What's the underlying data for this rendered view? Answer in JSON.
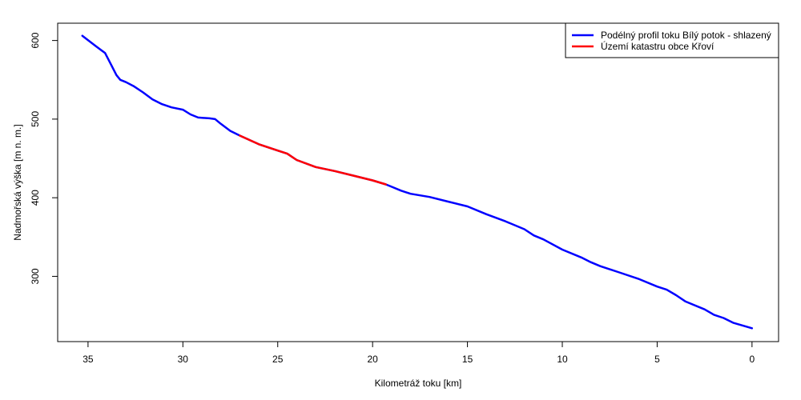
{
  "chart_data": {
    "type": "line",
    "xlabel": "Kilometráž toku [km]",
    "ylabel": "Nadmořská výška [m n. m.]",
    "x_reversed": true,
    "xlim": [
      36.6,
      -1.4
    ],
    "ylim": [
      217,
      622
    ],
    "x_ticks": [
      35,
      30,
      25,
      20,
      15,
      10,
      5,
      0
    ],
    "y_ticks": [
      300,
      400,
      500,
      600
    ],
    "legend_position": "top-right",
    "grid": false,
    "series": [
      {
        "name": "Podélný profil toku Bílý potok - shlazený",
        "color": "#0000ff",
        "points": [
          [
            35.3,
            606
          ],
          [
            34.6,
            593
          ],
          [
            34.1,
            584
          ],
          [
            33.8,
            570
          ],
          [
            33.5,
            556
          ],
          [
            33.3,
            550
          ],
          [
            33.0,
            547
          ],
          [
            32.6,
            542
          ],
          [
            32.1,
            534
          ],
          [
            31.6,
            525
          ],
          [
            31.1,
            519
          ],
          [
            30.6,
            515
          ],
          [
            30.0,
            512
          ],
          [
            29.6,
            506
          ],
          [
            29.2,
            502
          ],
          [
            28.6,
            501
          ],
          [
            28.3,
            500
          ],
          [
            28.0,
            494
          ],
          [
            27.5,
            485
          ],
          [
            27.0,
            479
          ],
          [
            26.0,
            468
          ],
          [
            25.0,
            460
          ],
          [
            24.5,
            456
          ],
          [
            24.0,
            448
          ],
          [
            23.0,
            439
          ],
          [
            22.0,
            434
          ],
          [
            21.0,
            428
          ],
          [
            20.0,
            422
          ],
          [
            19.3,
            417
          ],
          [
            19.0,
            414
          ],
          [
            18.5,
            409
          ],
          [
            18.0,
            405
          ],
          [
            17.0,
            401
          ],
          [
            16.0,
            395
          ],
          [
            15.0,
            389
          ],
          [
            14.0,
            379
          ],
          [
            13.0,
            370
          ],
          [
            12.0,
            360
          ],
          [
            11.5,
            352
          ],
          [
            11.0,
            347
          ],
          [
            10.0,
            334
          ],
          [
            9.0,
            324
          ],
          [
            8.5,
            318
          ],
          [
            8.0,
            313
          ],
          [
            7.0,
            305
          ],
          [
            6.0,
            297
          ],
          [
            5.0,
            287
          ],
          [
            4.5,
            283
          ],
          [
            4.0,
            276
          ],
          [
            3.5,
            268
          ],
          [
            2.5,
            258
          ],
          [
            2.0,
            251
          ],
          [
            1.5,
            247
          ],
          [
            1.0,
            241
          ],
          [
            0.0,
            234
          ]
        ]
      },
      {
        "name": "Území katastru obce Křoví",
        "color": "#ff0000",
        "points": [
          [
            27.0,
            479
          ],
          [
            26.0,
            468
          ],
          [
            25.0,
            460
          ],
          [
            24.5,
            456
          ],
          [
            24.0,
            448
          ],
          [
            23.0,
            439
          ],
          [
            22.0,
            434
          ],
          [
            21.0,
            428
          ],
          [
            20.0,
            422
          ],
          [
            19.3,
            417
          ]
        ]
      }
    ]
  }
}
